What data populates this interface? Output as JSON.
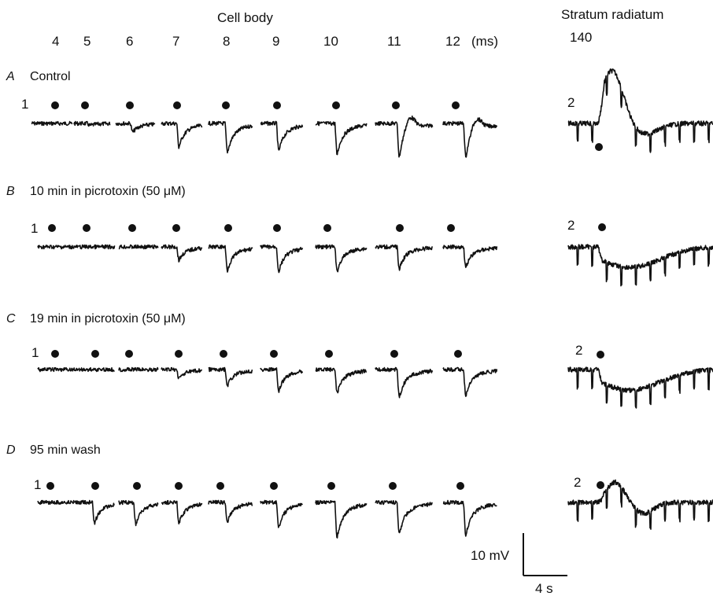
{
  "header": {
    "cell_body": "Cell body",
    "stratum_radiatum": "Stratum radiatum",
    "ms_unit": "(ms)",
    "timings": [
      "4",
      "5",
      "6",
      "7",
      "8",
      "9",
      "10",
      "11",
      "12"
    ],
    "radiatum_timing": "140"
  },
  "panels": [
    {
      "letter": "A",
      "label": "Control",
      "marker_cell": "1",
      "marker_rad": "2",
      "cell_depths": [
        0,
        3,
        12,
        32,
        40,
        38,
        42,
        48,
        48
      ],
      "cell_rebound": [
        0,
        0,
        0,
        0,
        0,
        0,
        0,
        18,
        16
      ],
      "rad_shape": "hump"
    },
    {
      "letter": "B",
      "label": "10 min in picrotoxin (50 μM)",
      "marker_cell": "1",
      "marker_rad": "2",
      "cell_depths": [
        0,
        0,
        0,
        18,
        32,
        34,
        34,
        30,
        28
      ],
      "cell_rebound": [
        0,
        0,
        0,
        0,
        0,
        0,
        0,
        0,
        0
      ],
      "rad_shape": "dip"
    },
    {
      "letter": "C",
      "label": "19 min in picrotoxin (50 μM)",
      "marker_cell": "1",
      "marker_rad": "2",
      "cell_depths": [
        0,
        0,
        0,
        12,
        22,
        30,
        32,
        38,
        36
      ],
      "cell_rebound": [
        0,
        0,
        0,
        0,
        0,
        0,
        0,
        0,
        0
      ],
      "rad_shape": "dip"
    },
    {
      "letter": "D",
      "label": "95 min wash",
      "marker_cell": "1",
      "marker_rad": "2",
      "cell_depths": [
        0,
        28,
        30,
        28,
        26,
        34,
        48,
        44,
        46
      ],
      "cell_rebound": [
        0,
        0,
        0,
        0,
        0,
        0,
        0,
        0,
        0
      ],
      "rad_shape": "small-hump"
    }
  ],
  "scale_bar": {
    "voltage": "10 mV",
    "time": "4 s"
  }
}
